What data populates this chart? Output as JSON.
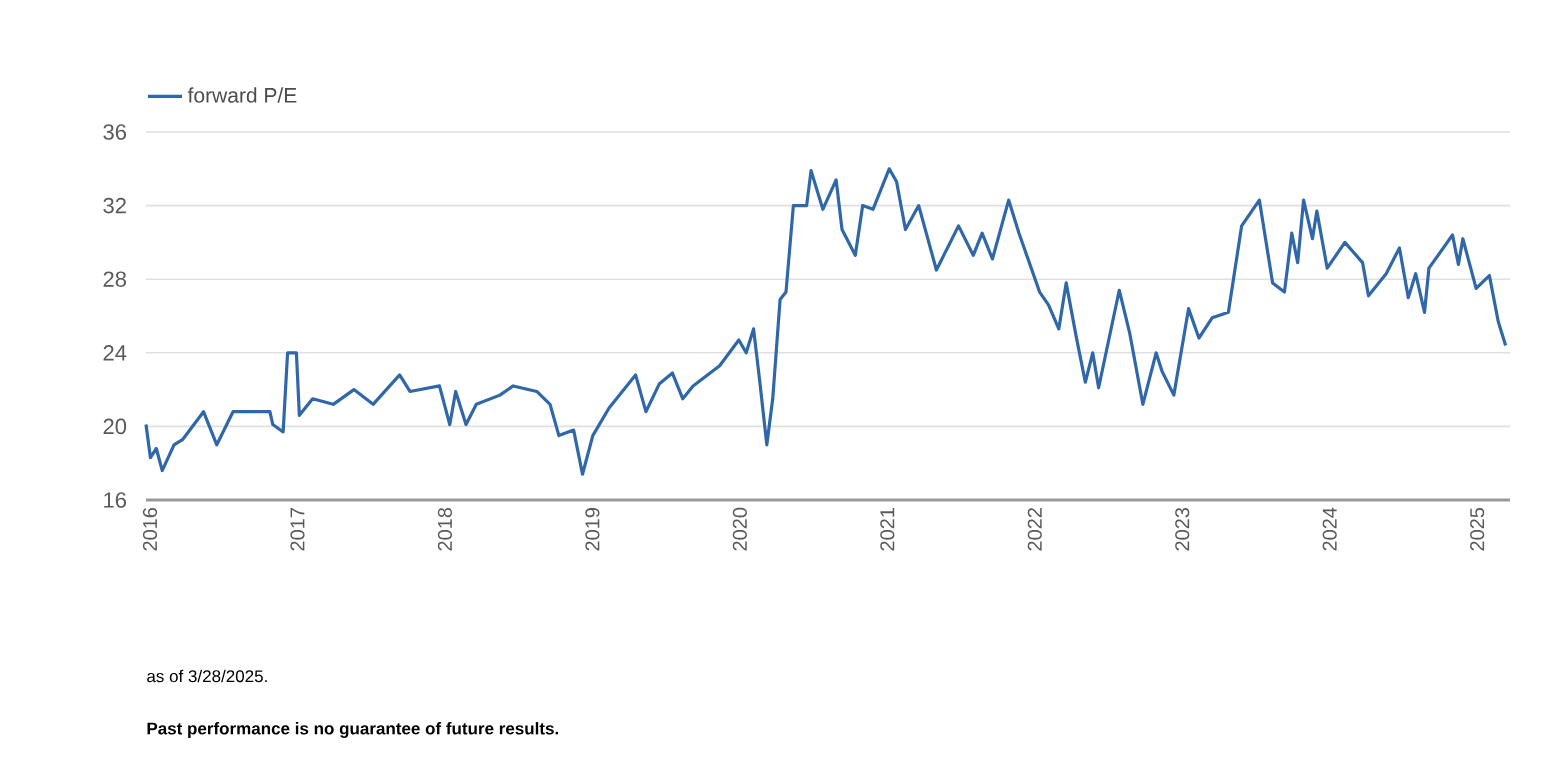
{
  "chart_data": {
    "type": "line",
    "series": [
      {
        "name": "forward P/E",
        "color": "#2f67a8",
        "x": [
          2016.0,
          2016.03,
          2016.07,
          2016.11,
          2016.19,
          2016.25,
          2016.39,
          2016.48,
          2016.59,
          2016.84,
          2016.86,
          2016.93,
          2016.96,
          2017.02,
          2017.04,
          2017.13,
          2017.27,
          2017.41,
          2017.54,
          2017.72,
          2017.79,
          2017.99,
          2018.06,
          2018.1,
          2018.17,
          2018.24,
          2018.4,
          2018.49,
          2018.65,
          2018.74,
          2018.8,
          2018.9,
          2018.96,
          2019.03,
          2019.14,
          2019.26,
          2019.32,
          2019.39,
          2019.48,
          2019.57,
          2019.64,
          2019.71,
          2019.89,
          2020.02,
          2020.07,
          2020.12,
          2020.16,
          2020.21,
          2020.25,
          2020.3,
          2020.34,
          2020.39,
          2020.48,
          2020.51,
          2020.59,
          2020.68,
          2020.72,
          2020.81,
          2020.86,
          2020.93,
          2021.04,
          2021.09,
          2021.15,
          2021.24,
          2021.36,
          2021.51,
          2021.61,
          2021.67,
          2021.74,
          2021.85,
          2021.92,
          2022.06,
          2022.12,
          2022.19,
          2022.24,
          2022.31,
          2022.37,
          2022.42,
          2022.46,
          2022.6,
          2022.67,
          2022.76,
          2022.85,
          2022.89,
          2022.97,
          2023.07,
          2023.14,
          2023.23,
          2023.34,
          2023.43,
          2023.55,
          2023.64,
          2023.72,
          2023.77,
          2023.81,
          2023.85,
          2023.91,
          2023.94,
          2024.01,
          2024.13,
          2024.25,
          2024.29,
          2024.41,
          2024.5,
          2024.56,
          2024.61,
          2024.67,
          2024.7,
          2024.86,
          2024.9,
          2024.93,
          2025.02,
          2025.11,
          2025.17,
          2025.22
        ],
        "values": [
          20.1,
          18.3,
          18.8,
          17.6,
          19.0,
          19.3,
          20.8,
          19.0,
          20.8,
          20.8,
          20.1,
          19.7,
          24.0,
          24.0,
          20.6,
          21.5,
          21.2,
          22.0,
          21.2,
          22.8,
          21.9,
          22.2,
          20.1,
          21.9,
          20.1,
          21.2,
          21.7,
          22.2,
          21.9,
          21.2,
          19.5,
          19.8,
          17.4,
          19.5,
          21.0,
          22.2,
          22.8,
          20.8,
          22.3,
          22.9,
          21.5,
          22.2,
          23.3,
          24.7,
          24.0,
          25.3,
          22.6,
          19.0,
          21.5,
          26.9,
          27.3,
          32.0,
          32.0,
          33.9,
          31.8,
          33.4,
          30.7,
          29.3,
          32.0,
          31.8,
          34.0,
          33.3,
          30.7,
          32.0,
          28.5,
          30.9,
          29.3,
          30.5,
          29.1,
          32.3,
          30.5,
          27.3,
          26.6,
          25.3,
          27.8,
          24.8,
          22.4,
          24.0,
          22.1,
          27.4,
          25.1,
          21.2,
          24.0,
          23.0,
          21.7,
          26.4,
          24.8,
          25.9,
          26.2,
          30.9,
          32.3,
          27.8,
          27.3,
          30.5,
          28.9,
          32.3,
          30.2,
          31.7,
          28.6,
          30.0,
          28.9,
          27.1,
          28.3,
          29.7,
          27.0,
          28.3,
          26.2,
          28.6,
          30.4,
          28.8,
          30.2,
          27.5,
          28.2,
          25.7,
          24.4
        ]
      }
    ],
    "xlim": [
      2016,
      2025.25
    ],
    "xticks": [
      2016,
      2017,
      2018,
      2019,
      2020,
      2021,
      2022,
      2023,
      2024,
      2025
    ],
    "ylim": [
      16,
      36
    ],
    "yticks": [
      16,
      20,
      24,
      28,
      32,
      36
    ],
    "grid": "y",
    "legend": "top left",
    "annotations": [
      "as of 3/28/2025.",
      "**Past performance is no guarantee of future results.**"
    ]
  }
}
